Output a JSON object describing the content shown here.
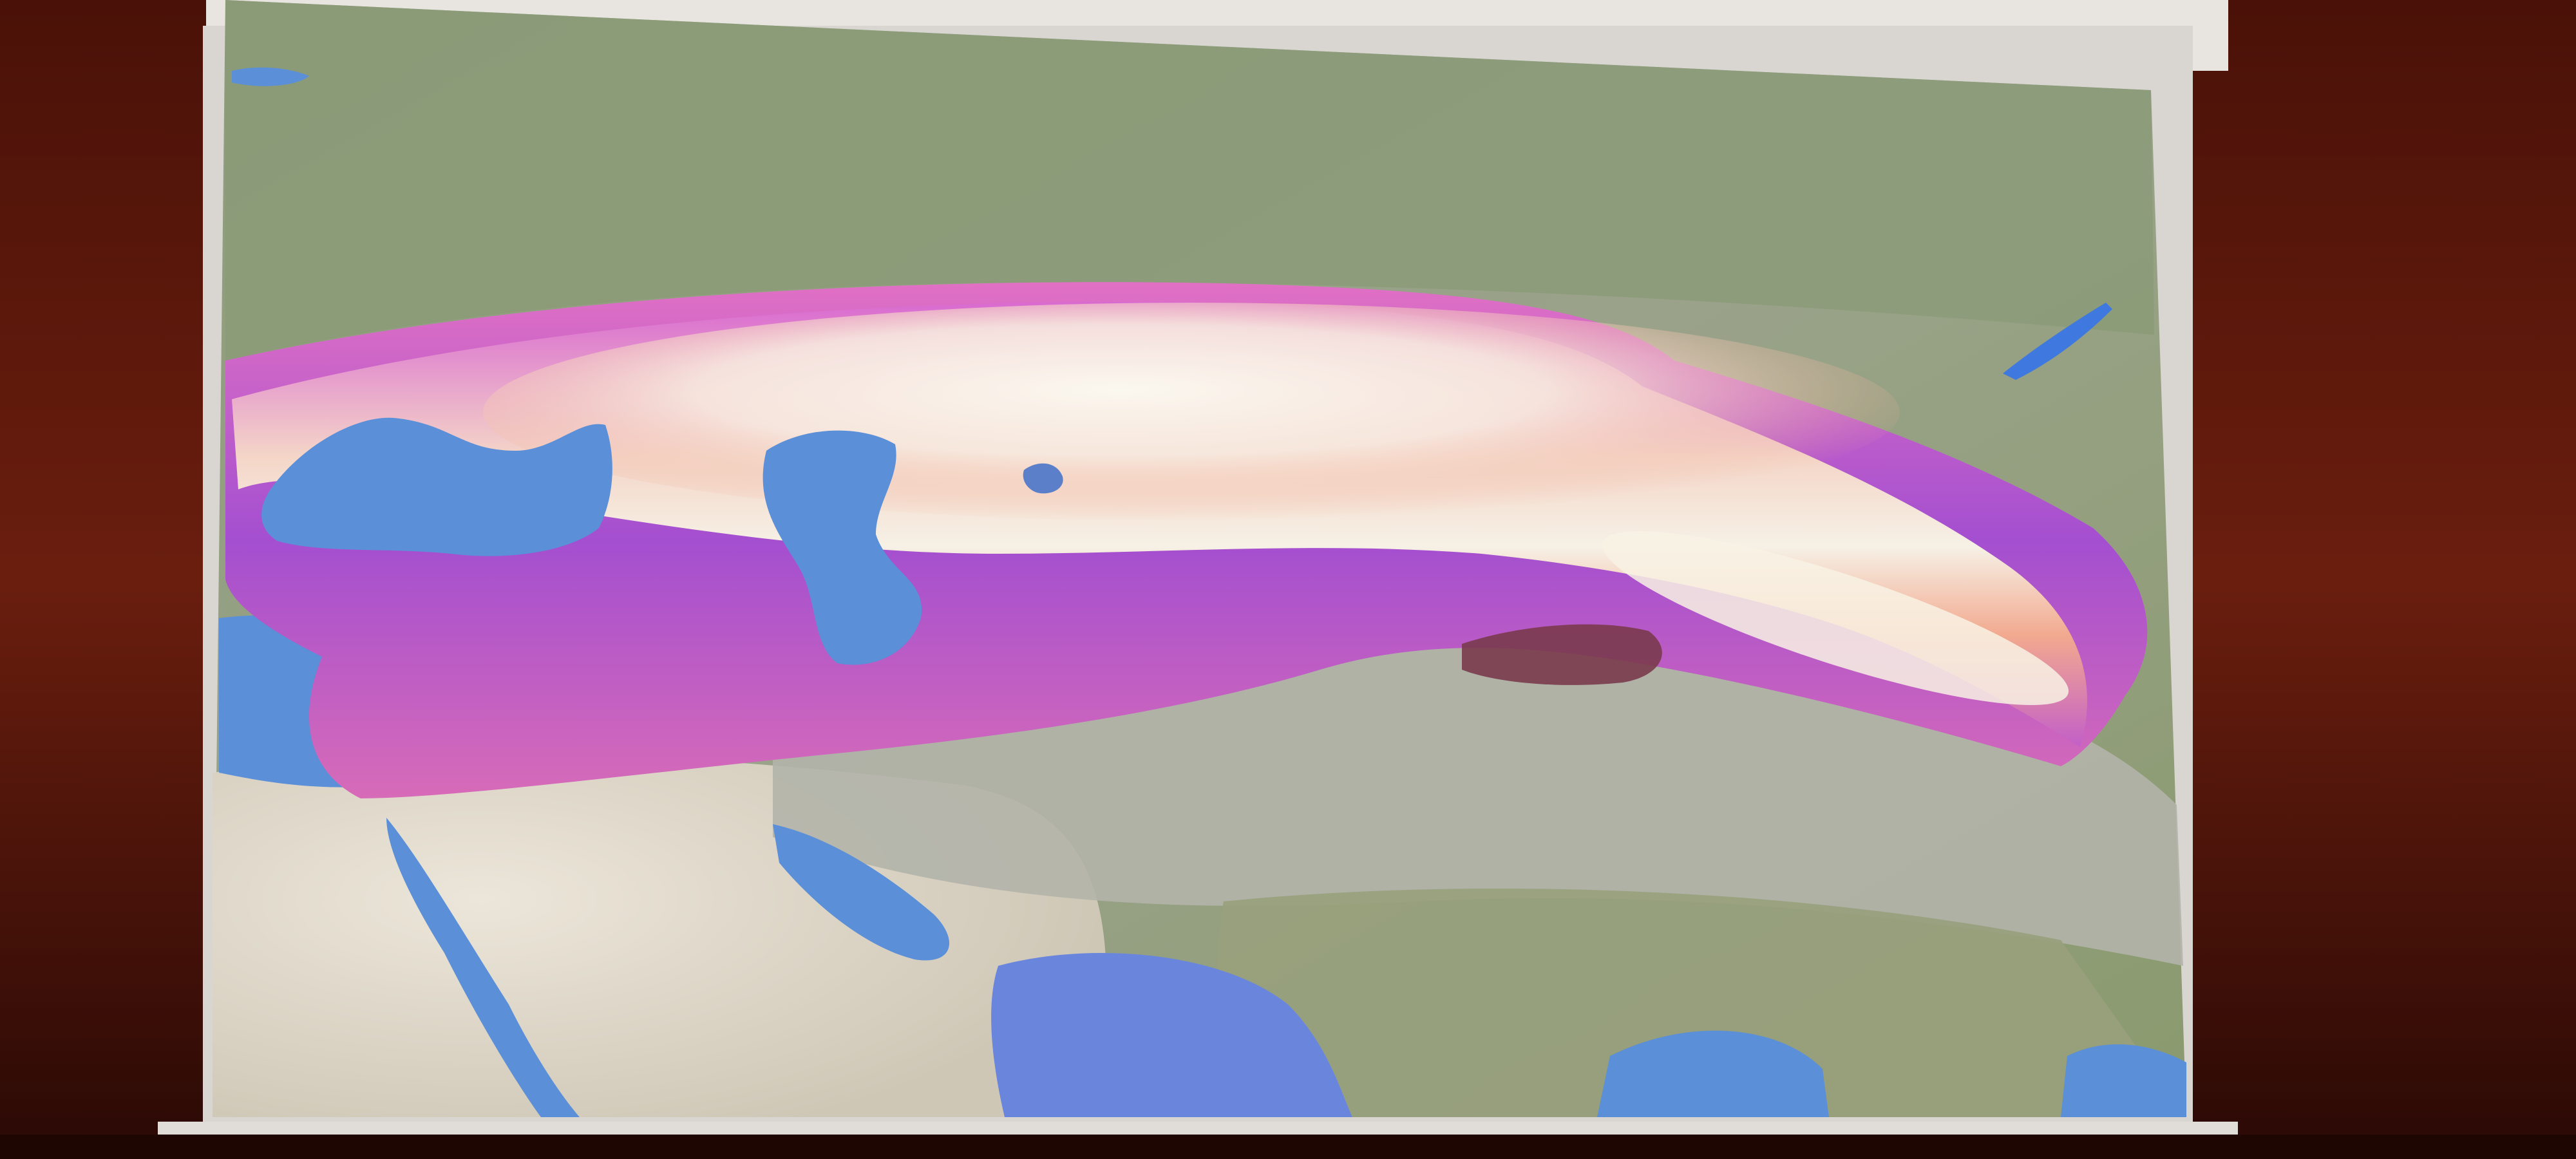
{
  "photo": {
    "subject": "projected-map-slide",
    "colors": {
      "wall": "#5a1a0e",
      "wall_dark": "#2a0905",
      "screen_frame": "#d9d6d2",
      "screen_bar": "#eeeae6",
      "land_green": "#8a9a72",
      "land_grey": "#aeb0a6",
      "desert": "#d9d4c8",
      "water": "#5b8fd8",
      "heat_white": "#f6f1e6",
      "heat_peach": "#f2a98f",
      "heat_pink": "#e06ac0",
      "heat_purple": "#9a4fc9"
    }
  }
}
